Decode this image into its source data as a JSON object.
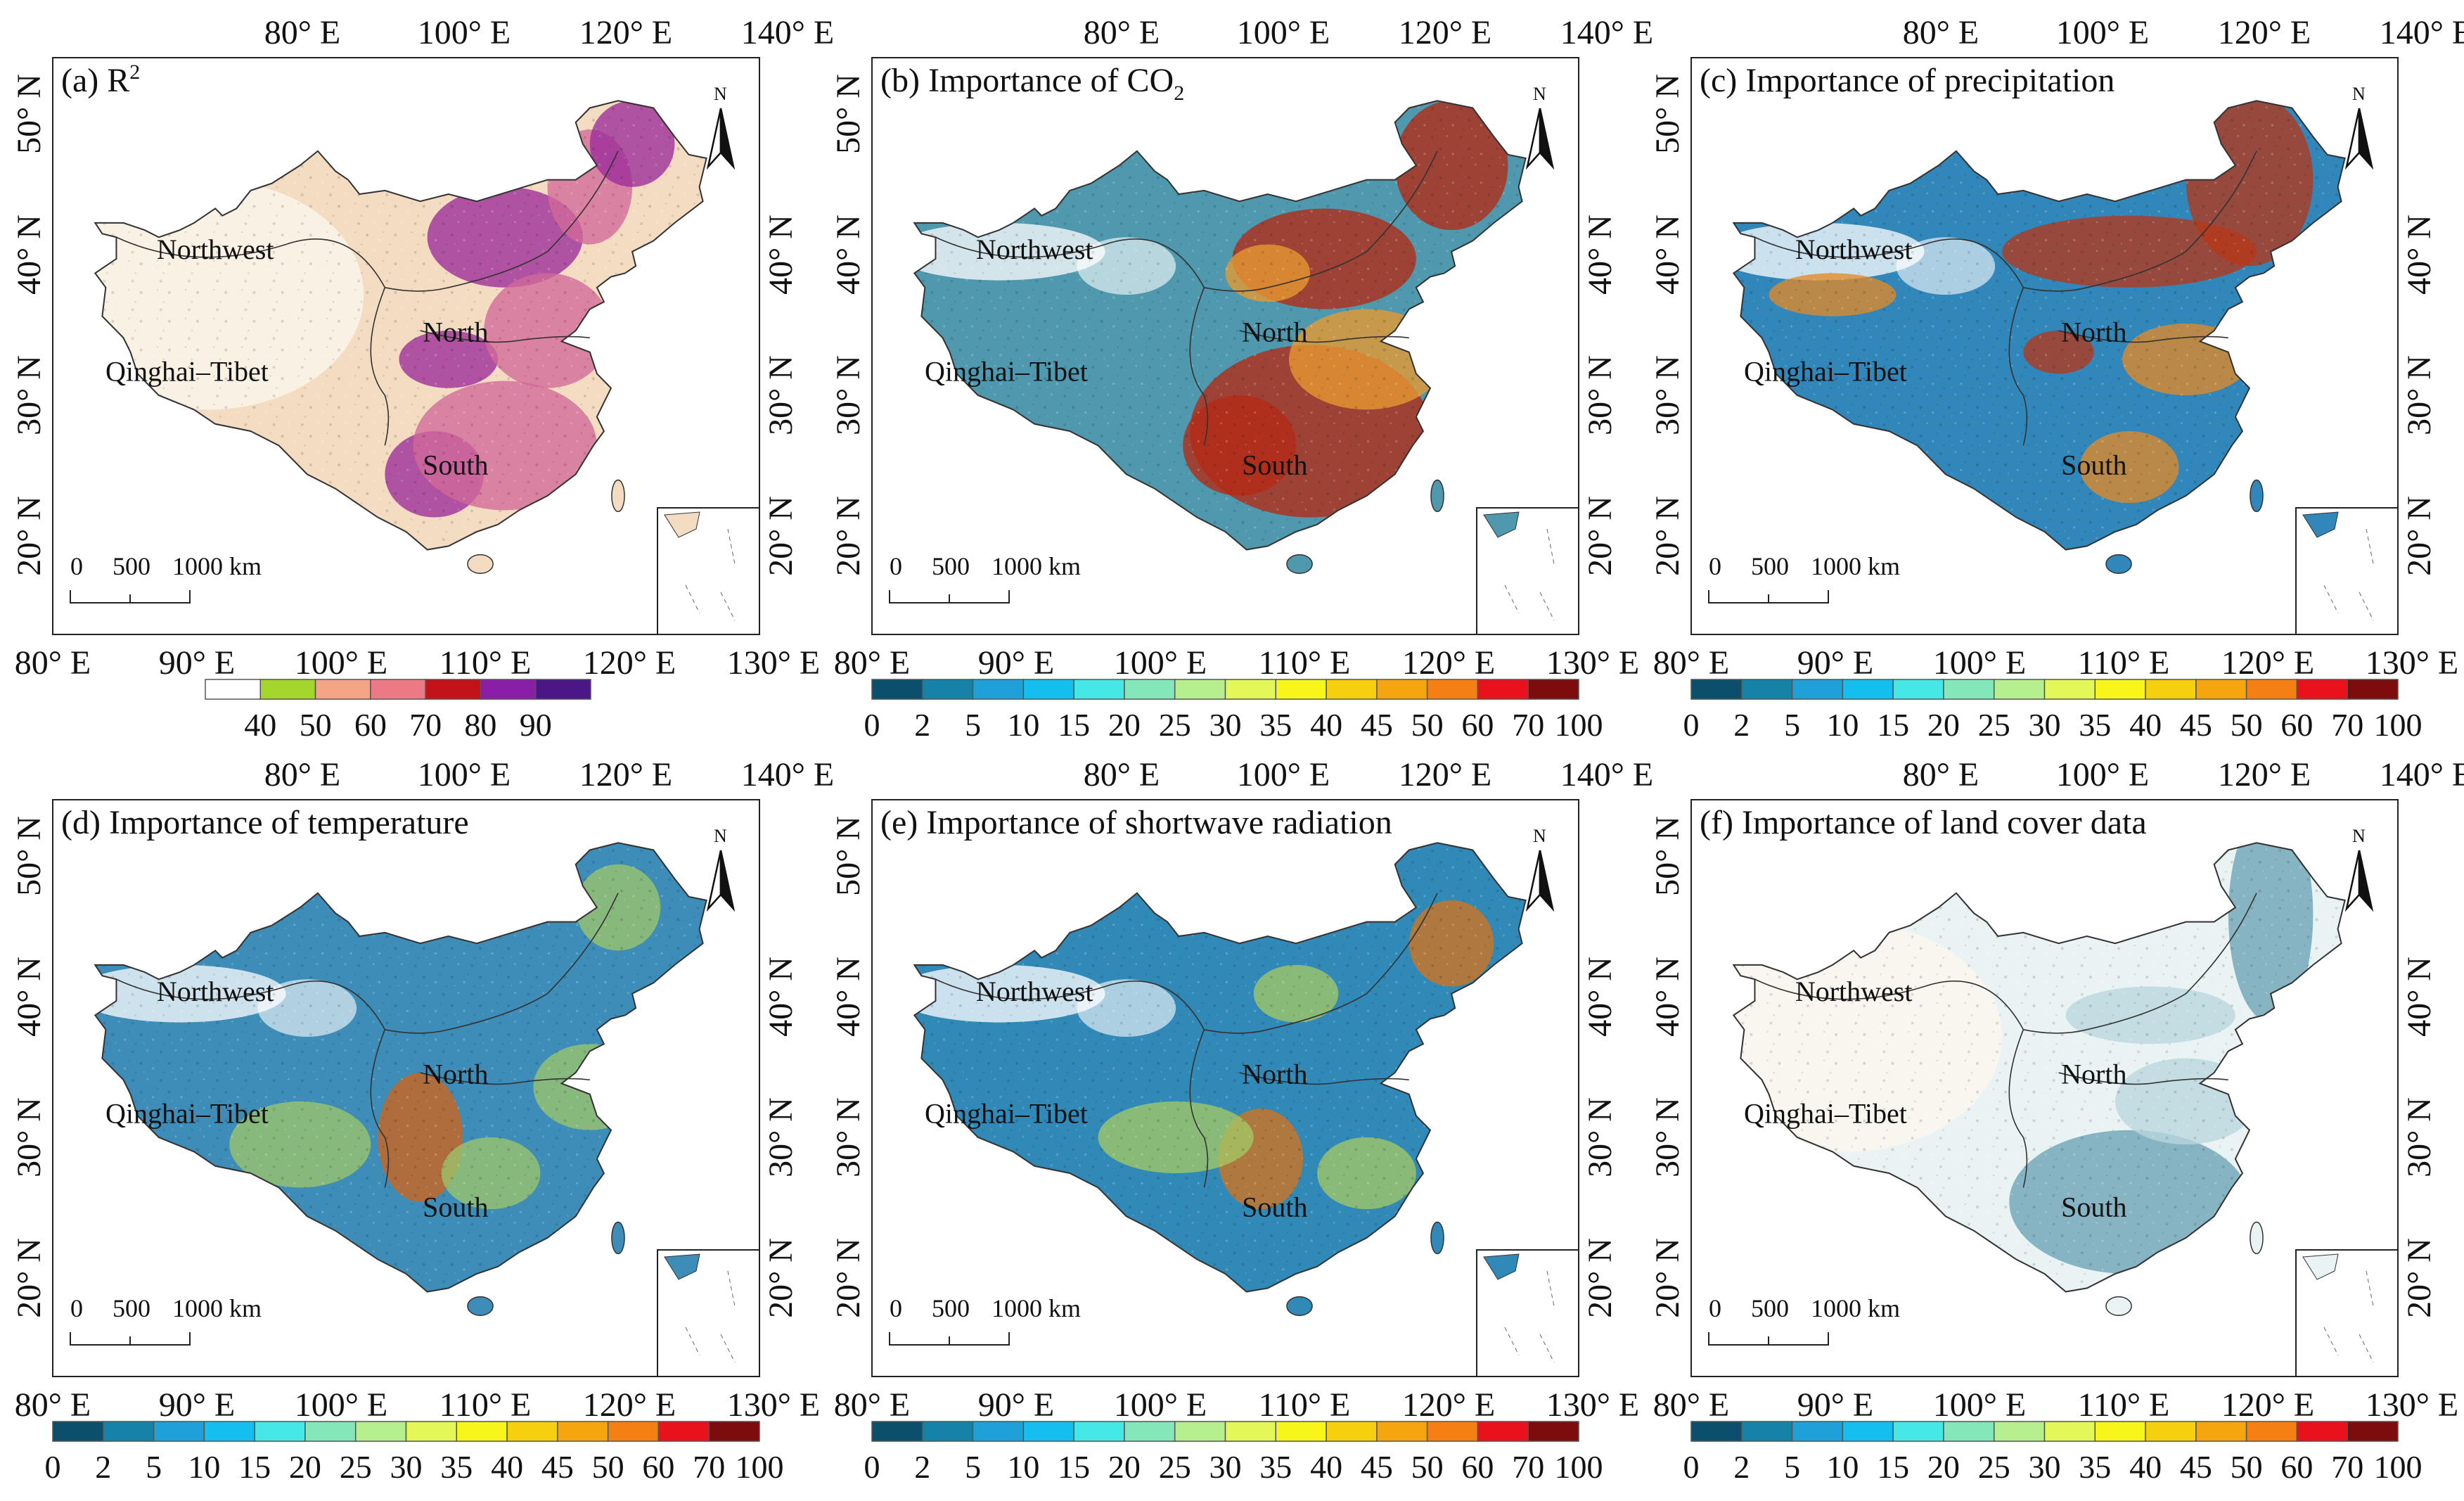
{
  "figure": {
    "panels": [
      {
        "label": "(a) R",
        "label_sup": "2",
        "legend": "r2"
      },
      {
        "label": "(b) Importance of CO",
        "label_sub": "2",
        "legend": "imp"
      },
      {
        "label": "(c) Importance of precipitation",
        "legend": "imp"
      },
      {
        "label": "(d) Importance of temperature",
        "legend": "imp"
      },
      {
        "label": "(e) Importance of shortwave radiation",
        "legend": "imp"
      },
      {
        "label": "(f) Importance of land cover data",
        "legend": "imp"
      }
    ],
    "top_ticks": [
      "80° E",
      "100° E",
      "120° E",
      "140° E"
    ],
    "bottom_ticks": [
      "80° E",
      "90° E",
      "100° E",
      "110° E",
      "120° E",
      "130° E"
    ],
    "left_ticks": [
      "50° N",
      "40° N",
      "30° N",
      "20° N"
    ],
    "right_ticks": [
      "40° N",
      "30° N",
      "20° N"
    ],
    "regions": [
      "Northwest",
      "Qinghai–Tibet",
      "North",
      "South"
    ],
    "north_arrow": "N",
    "scale_bar": [
      "0",
      "500",
      "1000 km"
    ],
    "legend_r2": {
      "labels": [
        "40",
        "50",
        "60",
        "70",
        "80",
        "90"
      ],
      "colors": [
        "#ffffff",
        "#a5d62c",
        "#f5a486",
        "#ec7a84",
        "#c4121a",
        "#8a1ea4",
        "#4b1786"
      ]
    },
    "legend_importance": {
      "labels": [
        "0",
        "2",
        "5",
        "10",
        "15",
        "20",
        "25",
        "30",
        "35",
        "40",
        "45",
        "50",
        "60",
        "70",
        "100"
      ],
      "colors": [
        "#0b4f6c",
        "#1782a8",
        "#1fa0d6",
        "#14bff0",
        "#45e8e6",
        "#84e7b9",
        "#b6f08e",
        "#e3f858",
        "#f7f51a",
        "#f6cf0e",
        "#f5a60e",
        "#f47f12",
        "#e9111c",
        "#7d0d0d"
      ]
    },
    "panel_colors": {
      "r2": {
        "base": "#f3dcc1",
        "hot": "#9b2b9a",
        "mid": "#d2699a"
      },
      "co2": {
        "base": "#4f98ad",
        "hot": "#b52a14",
        "mid": "#e89a30"
      },
      "precip": {
        "base": "#3186ba",
        "hot": "#b6391a",
        "mid": "#e28a26"
      },
      "temp": {
        "base": "#3d8db8",
        "hot": "#d0631b",
        "mid": "#9cc46b"
      },
      "sw": {
        "base": "#3189b7",
        "hot": "#d2731c",
        "mid": "#a4c866"
      },
      "lc": {
        "base": "#eaf3f3",
        "hot": "#6aa2b3",
        "mid": "#b9d6dc"
      }
    }
  }
}
